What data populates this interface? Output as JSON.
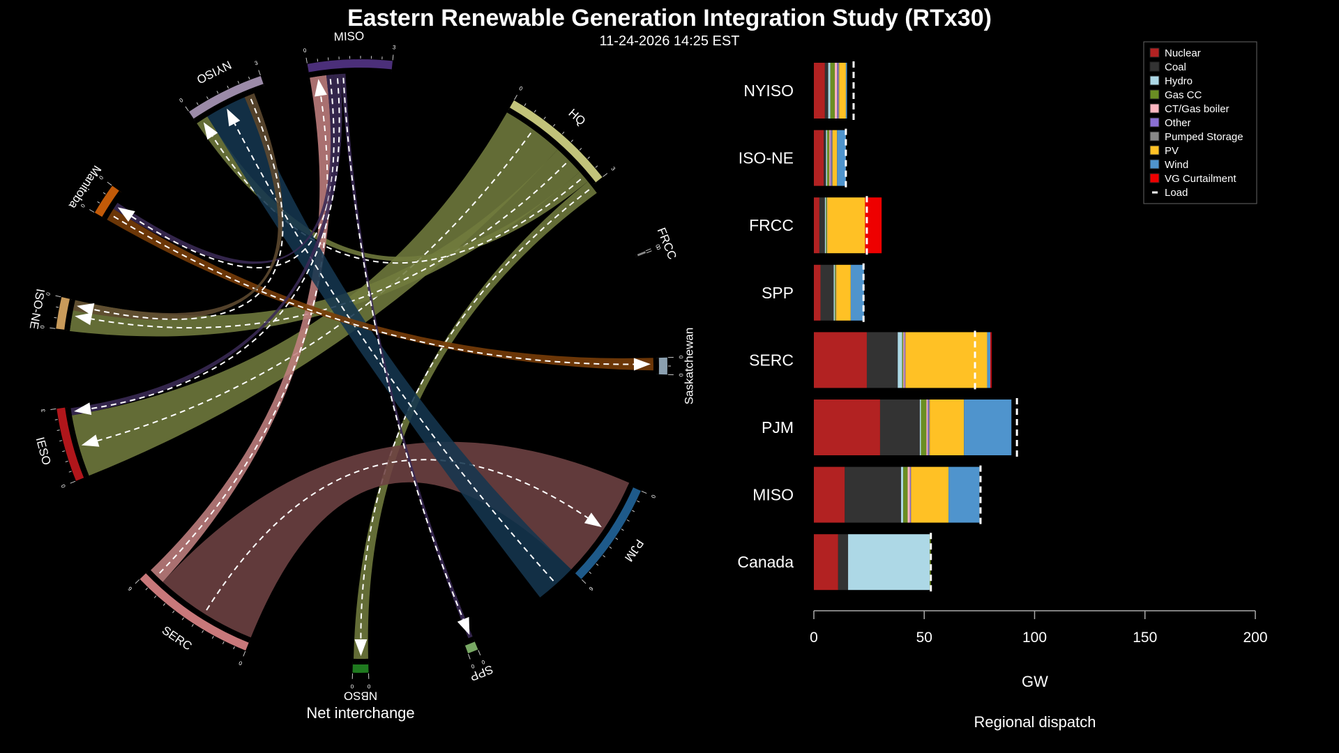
{
  "title": "Eastern Renewable Generation Integration Study (RTx30)",
  "subtitle": "11-24-2026 14:25 EST",
  "chord": {
    "caption": "Net interchange",
    "nodes": [
      {
        "name": "MISO",
        "color": "#4b2f79",
        "min_label": "0",
        "max_label": "3"
      },
      {
        "name": "HQ",
        "color": "#c2c37a",
        "min_label": "0",
        "max_label": "3"
      },
      {
        "name": "FRCC",
        "color": "#888888",
        "min_label": "0",
        "max_label": "0"
      },
      {
        "name": "Saskatchewan",
        "color": "#8ba0b0",
        "min_label": "0",
        "max_label": "0"
      },
      {
        "name": "PJM",
        "color": "#1e5a8a",
        "min_label": "0",
        "max_label": "6"
      },
      {
        "name": "SPP",
        "color": "#78a864",
        "min_label": "0",
        "max_label": "0"
      },
      {
        "name": "NBSO",
        "color": "#1f7a1f",
        "min_label": "0",
        "max_label": "0"
      },
      {
        "name": "SERC",
        "color": "#c8787a",
        "min_label": "0",
        "max_label": "6"
      },
      {
        "name": "IESO",
        "color": "#b0161b",
        "min_label": "0",
        "max_label": "3"
      },
      {
        "name": "ISO-NE",
        "color": "#c89a5a",
        "min_label": "0",
        "max_label": "0"
      },
      {
        "name": "Manitoba",
        "color": "#c25a08",
        "min_label": "0",
        "max_label": "0"
      },
      {
        "name": "NYISO",
        "color": "#9b8aa8",
        "min_label": "0",
        "max_label": "3"
      }
    ],
    "flows": [
      {
        "from": "HQ",
        "to": "IESO",
        "value": 3.0,
        "color": "#717b3e"
      },
      {
        "from": "HQ",
        "to": "ISO-NE",
        "value": 1.5,
        "color": "#717b3e"
      },
      {
        "from": "HQ",
        "to": "NYISO",
        "value": 0.6,
        "color": "#717b3e"
      },
      {
        "from": "HQ",
        "to": "NBSO",
        "value": 0.7,
        "color": "#717b3e"
      },
      {
        "from": "SERC",
        "to": "PJM",
        "value": 5.0,
        "color": "#6e4243"
      },
      {
        "from": "SERC",
        "to": "MISO",
        "value": 0.8,
        "color": "#c08080"
      },
      {
        "from": "PJM",
        "to": "NYISO",
        "value": 2.0,
        "color": "#14364f"
      },
      {
        "from": "Manitoba",
        "to": "Saskatchewan",
        "value": 0.6,
        "color": "#7a3e08"
      },
      {
        "from": "MISO",
        "to": "Manitoba",
        "value": 0.35,
        "color": "#3a2a55"
      },
      {
        "from": "MISO",
        "to": "IESO",
        "value": 0.35,
        "color": "#3a2a55"
      },
      {
        "from": "MISO",
        "to": "SPP",
        "value": 0.2,
        "color": "#3a2a55"
      },
      {
        "from": "NYISO",
        "to": "ISO-NE",
        "value": 0.5,
        "color": "#5e4a30"
      }
    ]
  },
  "chart_data": {
    "type": "bar",
    "orientation": "horizontal",
    "stacked": true,
    "title": "Regional dispatch",
    "xlabel": "GW",
    "ylabel": "",
    "xlim": [
      0,
      200
    ],
    "xticks": [
      0,
      50,
      100,
      150,
      200
    ],
    "legend_position": "top-right",
    "categories": [
      "NYISO",
      "ISO-NE",
      "FRCC",
      "SPP",
      "SERC",
      "PJM",
      "MISO",
      "Canada"
    ],
    "series": [
      {
        "name": "Nuclear",
        "color": "#b22222",
        "values": [
          5,
          4.5,
          2.5,
          3,
          24,
          30,
          14,
          11
        ]
      },
      {
        "name": "Coal",
        "color": "#333333",
        "values": [
          1.5,
          1,
          2.5,
          6,
          14,
          18,
          25.5,
          4.5
        ]
      },
      {
        "name": "Hydro",
        "color": "#add8e6",
        "values": [
          1,
          0.5,
          0.5,
          0.5,
          2,
          0.5,
          1,
          37
        ]
      },
      {
        "name": "Gas CC",
        "color": "#6b8e23",
        "values": [
          2,
          1,
          0.5,
          0.5,
          0.5,
          2.5,
          2,
          0.5
        ]
      },
      {
        "name": "CT/Gas boiler",
        "color": "#ffb6c1",
        "values": [
          1,
          0.5,
          0.2,
          0.2,
          0.5,
          0.5,
          1,
          0
        ]
      },
      {
        "name": "Other",
        "color": "#8a6fd3",
        "values": [
          0.5,
          0.5,
          0,
          0,
          0.5,
          0.5,
          0.5,
          0
        ]
      },
      {
        "name": "Pumped Storage",
        "color": "#888888",
        "values": [
          0.5,
          0.5,
          0,
          0,
          0,
          0.5,
          0,
          0
        ]
      },
      {
        "name": "PV",
        "color": "#ffc125",
        "values": [
          3,
          2,
          17,
          6.5,
          37,
          15.5,
          17,
          0
        ]
      },
      {
        "name": "Wind",
        "color": "#4f94cd",
        "values": [
          0.5,
          4,
          0,
          6,
          1.5,
          21.5,
          14,
          0
        ]
      },
      {
        "name": "VG Curtailment",
        "color": "#ee0000",
        "values": [
          0,
          0,
          7.5,
          0,
          0.5,
          0,
          0,
          0
        ]
      }
    ],
    "load": {
      "name": "Load",
      "values": [
        18,
        14.5,
        24,
        22.5,
        73,
        92,
        75.5,
        53
      ]
    }
  }
}
